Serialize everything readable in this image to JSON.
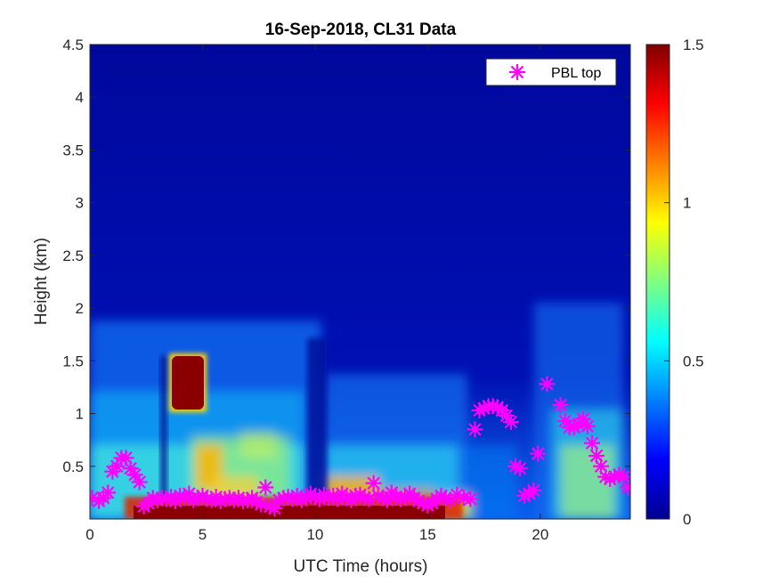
{
  "chart_data": {
    "type": "heatmap",
    "title": "16-Sep-2018, CL31 Data",
    "xlabel": "UTC Time (hours)",
    "ylabel": "Height (km)",
    "xlim": [
      0,
      24
    ],
    "ylim": [
      0,
      4.5
    ],
    "x_ticks": [
      "0",
      "5",
      "10",
      "15",
      "20"
    ],
    "y_ticks": [
      "0.5",
      "1",
      "1.5",
      "2",
      "2.5",
      "3",
      "3.5",
      "4",
      "4.5"
    ],
    "colorbar": {
      "min": 0,
      "max": 1.5,
      "ticks": [
        "0",
        "0.5",
        "1",
        "1.5"
      ],
      "colormap": "jet"
    },
    "legend": {
      "position": "top-right",
      "entries": [
        "PBL top"
      ]
    },
    "series": [
      {
        "name": "PBL top",
        "marker": "asterisk",
        "color": "#ff00ff",
        "x": [
          0.1,
          0.4,
          0.6,
          0.8,
          1.0,
          1.2,
          1.4,
          1.6,
          1.8,
          2.0,
          2.2,
          2.4,
          2.6,
          2.8,
          3.0,
          3.2,
          3.4,
          3.6,
          3.8,
          4.0,
          4.2,
          4.4,
          4.6,
          4.8,
          5.0,
          5.2,
          5.4,
          5.6,
          5.8,
          6.0,
          6.2,
          6.4,
          6.6,
          6.8,
          7.0,
          7.2,
          7.4,
          7.6,
          7.8,
          8.0,
          8.2,
          8.4,
          8.6,
          8.8,
          9.0,
          9.2,
          9.4,
          9.6,
          9.8,
          10.0,
          10.2,
          10.4,
          10.6,
          10.8,
          11.0,
          11.2,
          11.4,
          11.6,
          11.8,
          12.0,
          12.2,
          12.4,
          12.6,
          12.8,
          13.0,
          13.2,
          13.4,
          13.6,
          13.8,
          14.0,
          14.2,
          14.4,
          14.6,
          14.8,
          15.0,
          15.2,
          15.4,
          15.6,
          15.8,
          16.0,
          16.3,
          16.6,
          16.9,
          17.1,
          17.3,
          17.5,
          17.7,
          17.9,
          18.1,
          18.3,
          18.5,
          18.7,
          18.9,
          19.1,
          19.3,
          19.5,
          19.7,
          19.9,
          20.3,
          20.9,
          21.1,
          21.3,
          21.5,
          21.7,
          21.9,
          22.1,
          22.3,
          22.5,
          22.7,
          22.9,
          23.1,
          23.3,
          23.5,
          23.7,
          23.9
        ],
        "y": [
          0.2,
          0.17,
          0.2,
          0.25,
          0.45,
          0.5,
          0.58,
          0.58,
          0.48,
          0.42,
          0.35,
          0.12,
          0.15,
          0.2,
          0.18,
          0.2,
          0.19,
          0.21,
          0.17,
          0.22,
          0.2,
          0.24,
          0.18,
          0.2,
          0.22,
          0.19,
          0.18,
          0.21,
          0.17,
          0.19,
          0.2,
          0.18,
          0.2,
          0.17,
          0.18,
          0.2,
          0.16,
          0.14,
          0.3,
          0.12,
          0.1,
          0.18,
          0.2,
          0.21,
          0.19,
          0.22,
          0.18,
          0.2,
          0.24,
          0.21,
          0.19,
          0.23,
          0.2,
          0.22,
          0.19,
          0.24,
          0.2,
          0.18,
          0.22,
          0.23,
          0.2,
          0.19,
          0.34,
          0.22,
          0.2,
          0.18,
          0.25,
          0.21,
          0.19,
          0.2,
          0.24,
          0.2,
          0.17,
          0.15,
          0.13,
          0.15,
          0.19,
          0.22,
          0.2,
          0.18,
          0.23,
          0.2,
          0.19,
          0.85,
          1.03,
          1.05,
          1.07,
          1.07,
          1.06,
          1.03,
          0.98,
          0.92,
          0.5,
          0.48,
          0.22,
          0.24,
          0.27,
          0.62,
          1.28,
          1.08,
          0.93,
          0.87,
          0.87,
          0.9,
          0.95,
          0.88,
          0.72,
          0.6,
          0.5,
          0.4,
          0.38,
          0.4,
          0.42,
          0.4,
          0.3
        ]
      }
    ]
  }
}
